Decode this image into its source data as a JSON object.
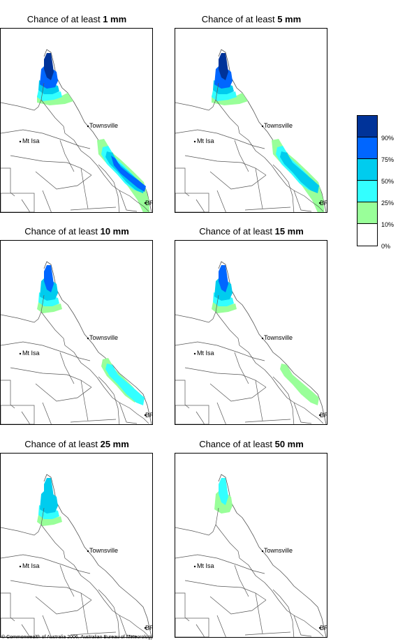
{
  "title_prefix": "Chance of at least",
  "panels": [
    {
      "amount": "1 mm"
    },
    {
      "amount": "5 mm"
    },
    {
      "amount": "10 mm"
    },
    {
      "amount": "15 mm"
    },
    {
      "amount": "25 mm"
    },
    {
      "amount": "50 mm"
    }
  ],
  "places": {
    "townsville": "Townsville",
    "mt_isa": "Mt Isa",
    "brisbane": "BRIS"
  },
  "legend": {
    "labels": [
      "90%",
      "75%",
      "50%",
      "25%",
      "10%",
      "0%"
    ],
    "colors": [
      "#003399",
      "#0066ff",
      "#00ccee",
      "#33ffff",
      "#99ff99",
      "#ffffff"
    ]
  },
  "colors": {
    "p90": "#003399",
    "p75": "#0066ff",
    "p50": "#00ccee",
    "p25": "#33ffff",
    "p10": "#99ff99",
    "boundary": "#555555"
  },
  "footer": "© Commonwealth of Australia 2006, Australian Bureau of Meteorology"
}
